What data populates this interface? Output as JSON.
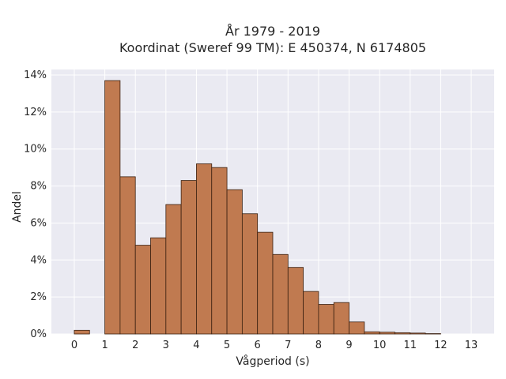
{
  "chart_data": {
    "type": "bar",
    "title_line1": "År 1979 - 2019",
    "title_line2": "Koordinat (Sweref 99 TM): E 450374, N 6174805",
    "xlabel": "Vågperiod (s)",
    "ylabel": "Andel",
    "xlim": [
      -0.75,
      13.75
    ],
    "ylim": [
      0,
      14.3
    ],
    "x_ticks": [
      0,
      1,
      2,
      3,
      4,
      5,
      6,
      7,
      8,
      9,
      10,
      11,
      12,
      13
    ],
    "y_ticks": [
      0,
      2,
      4,
      6,
      8,
      10,
      12,
      14
    ],
    "y_tick_labels": [
      "0%",
      "2%",
      "4%",
      "6%",
      "8%",
      "10%",
      "12%",
      "14%"
    ],
    "bin_width": 0.5,
    "bins": [
      {
        "x0": 0.0,
        "value": 0.2
      },
      {
        "x0": 1.0,
        "value": 13.7
      },
      {
        "x0": 1.5,
        "value": 8.5
      },
      {
        "x0": 2.0,
        "value": 4.8
      },
      {
        "x0": 2.5,
        "value": 5.2
      },
      {
        "x0": 3.0,
        "value": 7.0
      },
      {
        "x0": 3.5,
        "value": 8.3
      },
      {
        "x0": 4.0,
        "value": 9.2
      },
      {
        "x0": 4.5,
        "value": 9.0
      },
      {
        "x0": 5.0,
        "value": 7.8
      },
      {
        "x0": 5.5,
        "value": 6.5
      },
      {
        "x0": 6.0,
        "value": 5.5
      },
      {
        "x0": 6.5,
        "value": 4.3
      },
      {
        "x0": 7.0,
        "value": 3.6
      },
      {
        "x0": 7.5,
        "value": 2.3
      },
      {
        "x0": 8.0,
        "value": 1.6
      },
      {
        "x0": 8.5,
        "value": 1.7
      },
      {
        "x0": 9.0,
        "value": 0.65
      },
      {
        "x0": 9.5,
        "value": 0.12
      },
      {
        "x0": 10.0,
        "value": 0.1
      },
      {
        "x0": 10.5,
        "value": 0.07
      },
      {
        "x0": 11.0,
        "value": 0.05
      },
      {
        "x0": 11.5,
        "value": 0.02
      }
    ],
    "grid": true,
    "colors": {
      "bar_fill": "#c07a50",
      "bar_edge": "#3a2010",
      "plot_background": "#eaeaf2",
      "grid": "#ffffff"
    }
  }
}
